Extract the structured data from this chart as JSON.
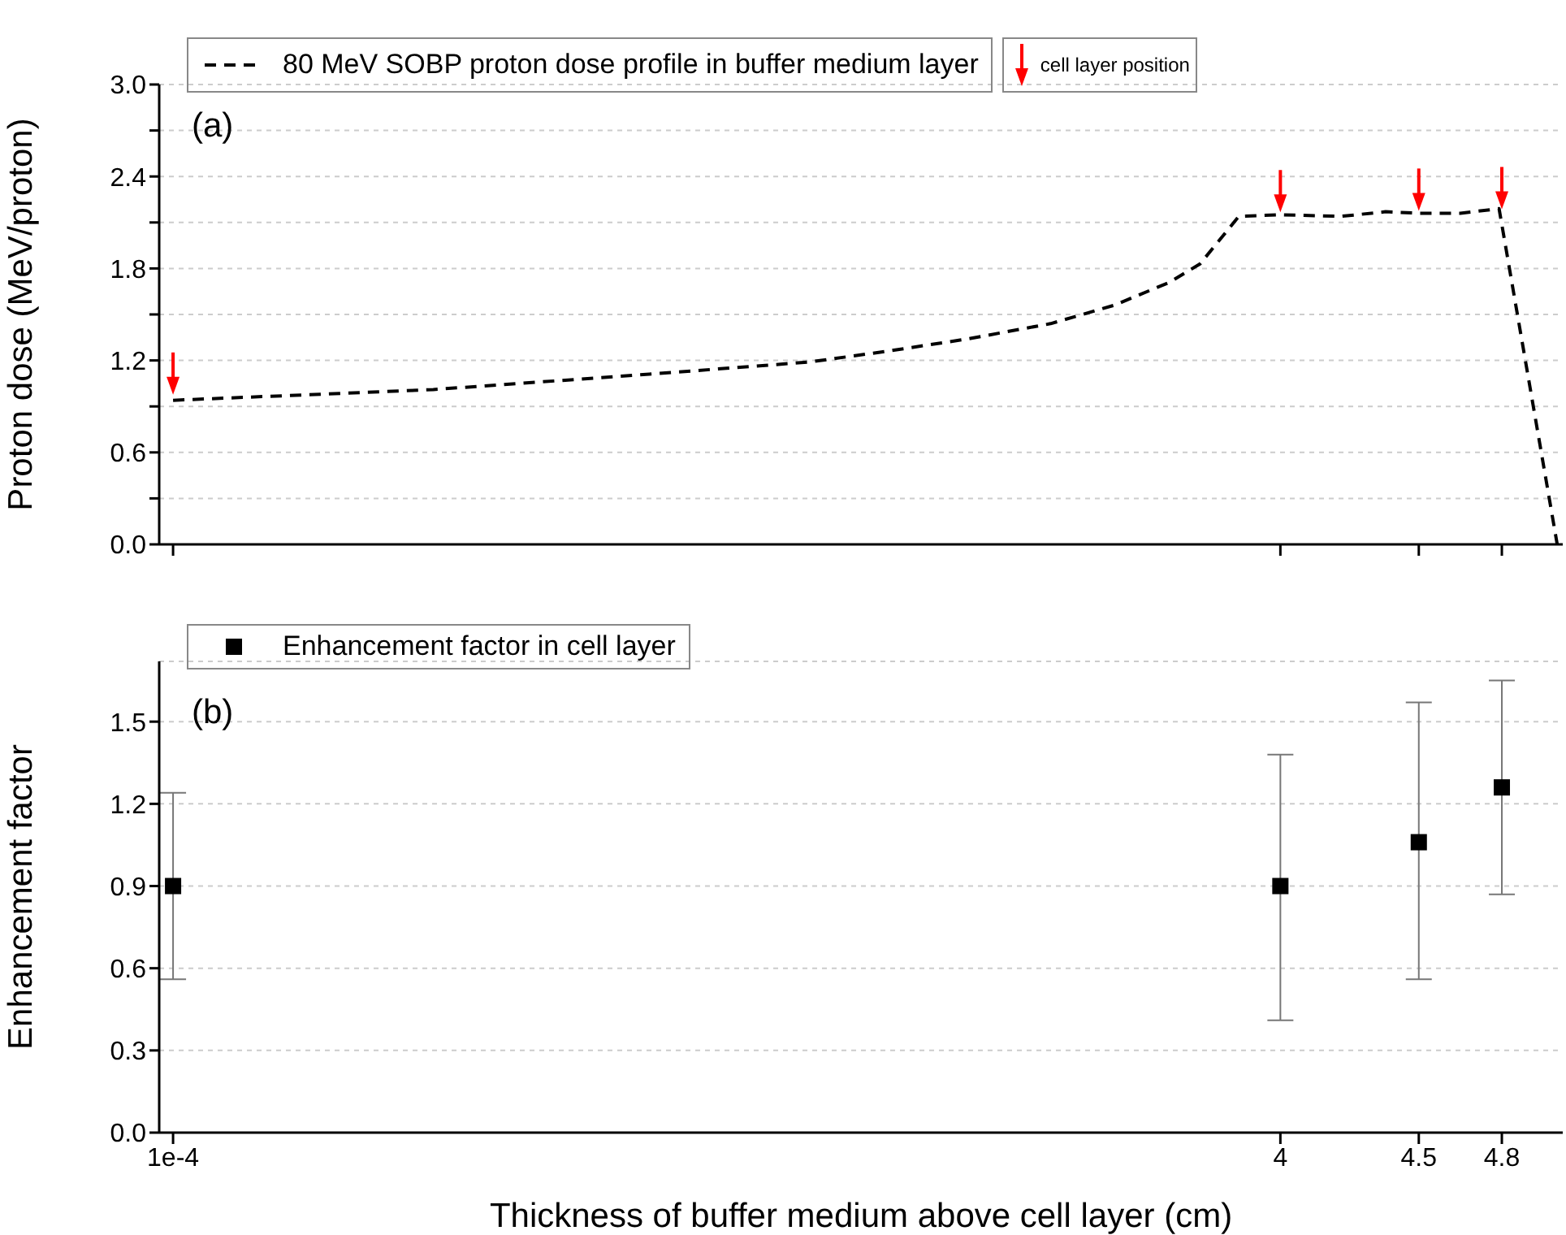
{
  "chart_data": [
    {
      "type": "line",
      "ylabel": "Proton dose (MeV/proton)",
      "annotations": [
        "(a)"
      ],
      "xlim": [
        -0.05,
        5.02
      ],
      "xticks": [
        0.0001,
        4,
        4.5,
        4.8
      ],
      "ylim": [
        0,
        3
      ],
      "yticks": [
        "0.0",
        {
          "value": 0.3,
          "label": null
        },
        0.6,
        {
          "value": 0.9,
          "label": null
        },
        1.2,
        {
          "value": 1.5,
          "label": null
        },
        1.8,
        {
          "value": 2.1,
          "label": null
        },
        2.4,
        {
          "value": 2.7,
          "label": null
        },
        "3.0"
      ],
      "grid": "y",
      "legend": "top left",
      "tick_labels": "y",
      "series": [
        {
          "name": "80 MeV SOBP proton dose profile in buffer medium layer",
          "color": "#000000",
          "line_style": "dashed",
          "marker": "none",
          "x": [
            0.0001,
            0.94,
            1.72,
            2.3,
            2.58,
            2.87,
            3.17,
            3.4,
            3.6,
            3.71,
            3.85,
            4.0,
            4.22,
            4.38,
            4.5,
            4.65,
            4.79,
            5.0
          ],
          "values": [
            0.94,
            1.01,
            1.11,
            1.19,
            1.26,
            1.34,
            1.44,
            1.56,
            1.71,
            1.83,
            2.14,
            2.15,
            2.14,
            2.17,
            2.16,
            2.16,
            2.19,
            0
          ]
        },
        {
          "name": "cell layer position",
          "type": "scatter",
          "color": "#ff0000",
          "marker": "triangle",
          "x": [
            0.0001,
            4,
            4.5,
            4.8
          ],
          "values": [
            1.04,
            2.23,
            2.24,
            2.25
          ]
        }
      ]
    },
    {
      "type": "scatter",
      "xlabel": "Thickness of buffer medium above cell layer (cm)",
      "ylabel": "Enhancement factor",
      "annotations": [
        "(b)"
      ],
      "xlim": [
        -0.05,
        5.02
      ],
      "xticks": [
        {
          "value": 0.0001,
          "label": "1e-4"
        },
        4,
        4.5,
        4.8
      ],
      "ylim": [
        0,
        1.72
      ],
      "yticks": [
        "0.0",
        0.3,
        0.6,
        0.9,
        1.2,
        1.5
      ],
      "grid": "y",
      "legend": "top left",
      "marker": "square",
      "series": [
        {
          "name": "Enhancement factor in cell layer",
          "color": "#000000",
          "x": [
            0.0001,
            4,
            4.5,
            4.8
          ],
          "values": [
            0.9,
            0.9,
            1.06,
            1.26
          ],
          "errors": [
            [
              0.56,
              1.24
            ],
            [
              0.41,
              1.38
            ],
            [
              0.56,
              1.57
            ],
            [
              0.87,
              1.65
            ]
          ]
        }
      ]
    }
  ]
}
